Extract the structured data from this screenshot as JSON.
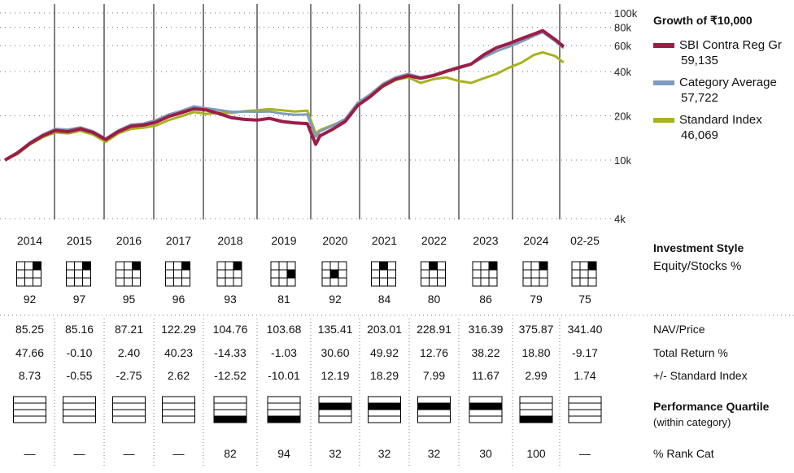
{
  "colors": {
    "fund": "#9c1d46",
    "category": "#7f9bbd",
    "index": "#a8b21f"
  },
  "legend": {
    "title": "Growth of ₹10,000",
    "items": [
      {
        "name": "SBI Contra Reg Gr",
        "value": "59,135",
        "color": "#9c1d46"
      },
      {
        "name": "Category Average",
        "value": "57,722",
        "color": "#7f9bbd"
      },
      {
        "name": "Standard Index",
        "value": "46,069",
        "color": "#a8b21f"
      }
    ]
  },
  "chart_data": {
    "type": "line",
    "yscale": "log",
    "ylim": [
      4000,
      100000
    ],
    "yticks": [
      "100k",
      "80k",
      "60k",
      "40k",
      "20k",
      "10k",
      "4k"
    ],
    "x": [
      "2014-01",
      "2014-04",
      "2014-07",
      "2014-10",
      "2015-01",
      "2015-04",
      "2015-07",
      "2015-10",
      "2016-01",
      "2016-04",
      "2016-07",
      "2016-10",
      "2017-01",
      "2017-04",
      "2017-07",
      "2017-10",
      "2018-01",
      "2018-04",
      "2018-07",
      "2018-10",
      "2019-01",
      "2019-04",
      "2019-07",
      "2019-10",
      "2020-01",
      "2020-03",
      "2020-04",
      "2020-07",
      "2020-10",
      "2021-01",
      "2021-04",
      "2021-07",
      "2021-10",
      "2022-01",
      "2022-04",
      "2022-07",
      "2022-10",
      "2023-01",
      "2023-04",
      "2023-07",
      "2023-10",
      "2024-01",
      "2024-04",
      "2024-07",
      "2024-09",
      "2024-12",
      "2025-02"
    ],
    "series": [
      {
        "name": "SBI Contra Reg Gr",
        "values": [
          10000,
          11200,
          13000,
          14600,
          15900,
          15600,
          16300,
          15400,
          13800,
          15600,
          17000,
          17300,
          18100,
          19800,
          21000,
          22300,
          21900,
          20700,
          19400,
          18900,
          18700,
          19200,
          18300,
          17900,
          17700,
          12800,
          14600,
          16200,
          18300,
          23500,
          27000,
          32000,
          35500,
          37500,
          36000,
          37500,
          40000,
          42500,
          45000,
          52000,
          58000,
          62000,
          67000,
          72000,
          76000,
          66000,
          59135
        ]
      },
      {
        "name": "Category Average",
        "values": [
          10000,
          11300,
          13200,
          14900,
          16300,
          16100,
          16700,
          15700,
          14000,
          15900,
          17400,
          17700,
          18700,
          20400,
          21600,
          23200,
          22500,
          21900,
          21300,
          21400,
          21300,
          21400,
          20700,
          20300,
          20400,
          14400,
          15700,
          17100,
          19000,
          24500,
          28000,
          33000,
          36500,
          38500,
          36500,
          38000,
          40500,
          43000,
          45000,
          50000,
          55000,
          59000,
          64000,
          70000,
          74000,
          64500,
          57722
        ]
      },
      {
        "name": "Standard Index",
        "values": [
          10000,
          11000,
          12800,
          14300,
          15400,
          15200,
          15800,
          14900,
          13300,
          15200,
          16300,
          16600,
          17200,
          18700,
          19900,
          21200,
          20600,
          21000,
          20900,
          21500,
          21800,
          22200,
          21800,
          21400,
          21700,
          15200,
          16000,
          17300,
          18800,
          23600,
          27000,
          31500,
          35000,
          36500,
          33500,
          35500,
          36500,
          34500,
          33500,
          36000,
          38500,
          42500,
          46000,
          52000,
          54000,
          51000,
          46069
        ]
      }
    ]
  },
  "years": [
    "2014",
    "2015",
    "2016",
    "2017",
    "2018",
    "2019",
    "2020",
    "2021",
    "2022",
    "2023",
    "2024",
    "02-25"
  ],
  "style_boxes": [
    {
      "row": 0,
      "col": 2
    },
    {
      "row": 0,
      "col": 2
    },
    {
      "row": 0,
      "col": 2
    },
    {
      "row": 0,
      "col": 2
    },
    {
      "row": 0,
      "col": 2
    },
    {
      "row": 1,
      "col": 2
    },
    {
      "row": 1,
      "col": 1
    },
    {
      "row": 0,
      "col": 1
    },
    {
      "row": 0,
      "col": 1
    },
    {
      "row": 0,
      "col": 2
    },
    {
      "row": 0,
      "col": 2
    },
    {
      "row": 0,
      "col": 2
    }
  ],
  "equity_pct": [
    "92",
    "97",
    "95",
    "96",
    "93",
    "81",
    "92",
    "84",
    "80",
    "86",
    "79",
    "75"
  ],
  "nav": [
    "85.25",
    "85.16",
    "87.21",
    "122.29",
    "104.76",
    "103.68",
    "135.41",
    "203.01",
    "228.91",
    "316.39",
    "375.87",
    "341.40"
  ],
  "total_return": [
    "47.66",
    "-0.10",
    "2.40",
    "40.23",
    "-14.33",
    "-1.03",
    "30.60",
    "49.92",
    "12.76",
    "38.22",
    "18.80",
    "-9.17"
  ],
  "plus_minus": [
    "8.73",
    "-0.55",
    "-2.75",
    "2.62",
    "-12.52",
    "-10.01",
    "12.19",
    "18.29",
    "7.99",
    "11.67",
    "2.99",
    "1.74"
  ],
  "quartiles": [
    0,
    0,
    0,
    0,
    4,
    4,
    2,
    2,
    2,
    2,
    4,
    0
  ],
  "rank_cat": [
    "—",
    "—",
    "—",
    "—",
    "82",
    "94",
    "32",
    "32",
    "32",
    "30",
    "100",
    "—"
  ],
  "labels": {
    "investment_style": "Investment Style",
    "equity_stocks": "Equity/Stocks %",
    "nav_price": "NAV/Price",
    "total_return": "Total Return %",
    "plus_minus_index": "+/- Standard Index",
    "performance_quartile": "Performance Quartile",
    "within_category": "(within category)",
    "rank_cat": "% Rank Cat"
  }
}
